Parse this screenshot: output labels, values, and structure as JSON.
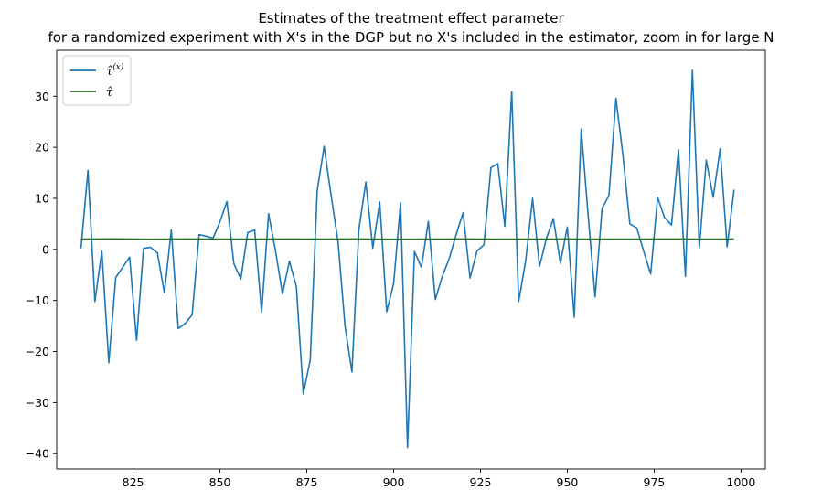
{
  "chart_data": {
    "type": "line",
    "title": [
      "Estimates of the treatment effect parameter",
      "for a randomized experiment with X's in the DGP but no X's included in the estimator, zoom in for large N"
    ],
    "xlabel": "",
    "ylabel": "",
    "xlim": [
      803,
      1007
    ],
    "ylim": [
      -43,
      39
    ],
    "xticks": [
      825,
      850,
      875,
      900,
      925,
      950,
      975,
      1000
    ],
    "yticks": [
      -40,
      -30,
      -20,
      -10,
      0,
      10,
      20,
      30
    ],
    "legend_position": "top-left",
    "grid": false,
    "series": [
      {
        "name": "τ̂(x)",
        "legend_base": "τ̂",
        "legend_sup": "(x)",
        "color": "#1f77b4",
        "x": [
          810,
          812,
          814,
          816,
          818,
          820,
          822,
          824,
          826,
          828,
          830,
          832,
          834,
          836,
          838,
          840,
          842,
          844,
          846,
          848,
          850,
          852,
          854,
          856,
          858,
          860,
          862,
          864,
          866,
          868,
          870,
          872,
          874,
          876,
          878,
          880,
          882,
          884,
          886,
          888,
          890,
          892,
          894,
          896,
          898,
          900,
          902,
          904,
          906,
          908,
          910,
          912,
          914,
          916,
          918,
          920,
          922,
          924,
          926,
          928,
          930,
          932,
          934,
          936,
          938,
          940,
          942,
          944,
          946,
          948,
          950,
          952,
          954,
          956,
          958,
          960,
          962,
          964,
          966,
          968,
          970,
          972,
          974,
          976,
          978,
          980,
          982,
          984,
          986,
          988,
          990,
          992,
          994,
          996,
          998
        ],
        "y": [
          0.2,
          15.5,
          -10.2,
          -0.3,
          -22.2,
          -5.5,
          -3.5,
          -1.5,
          -17.8,
          0.2,
          0.4,
          -0.7,
          -8.5,
          3.8,
          -15.5,
          -14.5,
          -12.8,
          2.9,
          2.6,
          2.2,
          5.4,
          9.4,
          -2.8,
          -5.8,
          3.3,
          3.8,
          -12.3,
          7.0,
          -0.3,
          -8.7,
          -2.3,
          -7.3,
          -28.3,
          -21.6,
          11.5,
          20.2,
          10.6,
          1.5,
          -15.0,
          -24.0,
          3.9,
          13.2,
          0.2,
          9.3,
          -12.2,
          -6.7,
          9.1,
          -38.8,
          -0.4,
          -3.5,
          5.5,
          -9.8,
          -5.3,
          -1.8,
          2.9,
          7.2,
          -5.6,
          -0.3,
          0.9,
          16.0,
          16.8,
          4.5,
          30.9,
          -10.2,
          -2.3,
          10.0,
          -3.3,
          2.2,
          6.0,
          -2.7,
          4.4,
          -13.3,
          23.6,
          6.6,
          -9.3,
          8.0,
          10.6,
          29.6,
          18.5,
          5.0,
          4.2,
          -0.4,
          -4.8,
          10.2,
          6.2,
          4.8,
          19.5,
          -5.3,
          35.1,
          0.3,
          17.5,
          10.2,
          19.7,
          0.5,
          11.7
        ]
      },
      {
        "name": "τ̂",
        "legend_base": "τ̂",
        "legend_sup": "",
        "color": "#2a6e2a",
        "x": [
          810,
          820,
          830,
          840,
          850,
          860,
          870,
          880,
          890,
          900,
          910,
          920,
          930,
          940,
          950,
          960,
          970,
          980,
          990,
          998
        ],
        "y": [
          2.0,
          2.05,
          1.98,
          2.02,
          2.01,
          1.99,
          2.03,
          2.0,
          2.02,
          1.98,
          2.01,
          2.03,
          2.0,
          1.99,
          2.02,
          2.0,
          2.01,
          2.03,
          2.0,
          2.01
        ]
      }
    ]
  }
}
